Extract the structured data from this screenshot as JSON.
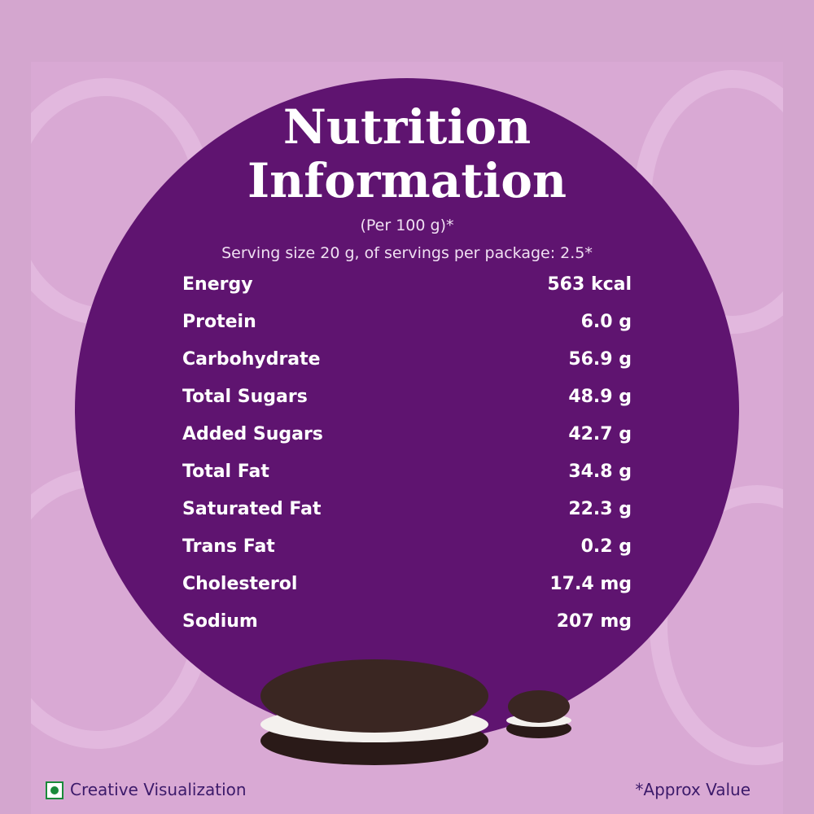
{
  "header": {
    "title_line1": "Nutrition",
    "title_line2": "Information",
    "per": "(Per 100 g)*",
    "serving": "Serving size 20 g, of servings per package: 2.5*"
  },
  "table": {
    "rows": [
      [
        "Energy",
        "563 kcal"
      ],
      [
        "Protein",
        "6.0 g"
      ],
      [
        "Carbohydrate",
        "56.9 g"
      ],
      [
        "Total Sugars",
        "48.9 g"
      ],
      [
        "Added Sugars",
        "42.7 g"
      ],
      [
        "Total Fat",
        "34.8 g"
      ],
      [
        "Saturated Fat",
        "22.3 g"
      ],
      [
        "Trans Fat",
        "0.2 g"
      ],
      [
        "Cholesterol",
        "17.4 mg"
      ],
      [
        "Sodium",
        "207 mg"
      ]
    ]
  },
  "footer": {
    "left": "Creative Visualization",
    "right": "*Approx Value"
  }
}
